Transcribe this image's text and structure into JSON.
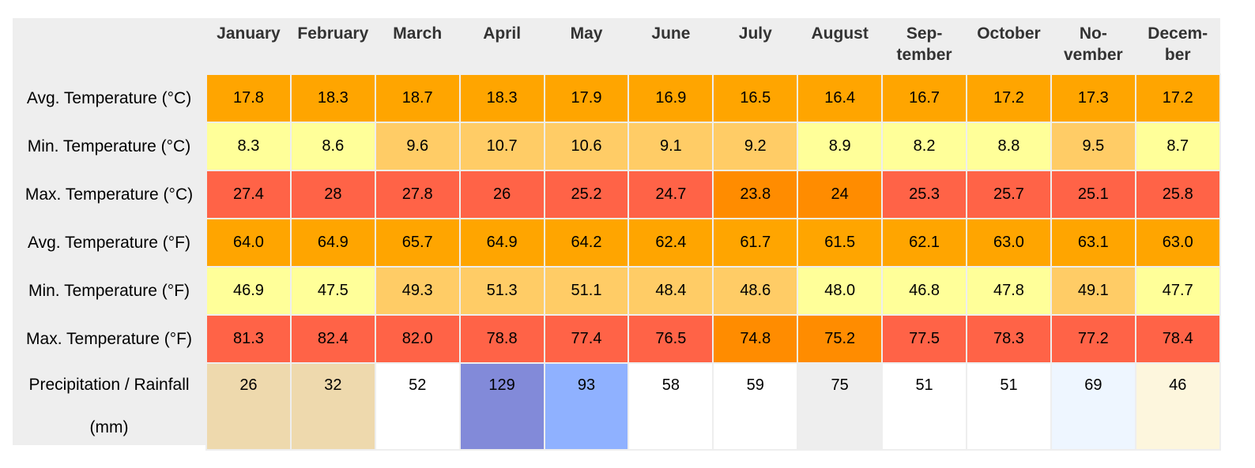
{
  "months": [
    "January",
    "February",
    "March",
    "April",
    "May",
    "June",
    "July",
    "August",
    "Sep-\ntember",
    "October",
    "No-\nvember",
    "Decem-\nber"
  ],
  "colors": {
    "orange": "#ffa500",
    "dark_orange": "#ff8c00",
    "light_orange": "#ffcc66",
    "pale_yellow": "#ffff99",
    "red": "#ff6347",
    "tan": "#eed9ad",
    "periwinkle": "#828ad9",
    "light_blue": "#8fb1ff",
    "light_gray": "#eeeeee",
    "ice_blue": "#eef6ff",
    "cream": "#fdf6dd",
    "white": "#ffffff"
  },
  "rows": [
    {
      "label": "Avg. Temperature (°C)",
      "values": [
        "17.8",
        "18.3",
        "18.7",
        "18.3",
        "17.9",
        "16.9",
        "16.5",
        "16.4",
        "16.7",
        "17.2",
        "17.3",
        "17.2"
      ],
      "colors": [
        "#ffa500",
        "#ffa500",
        "#ffa500",
        "#ffa500",
        "#ffa500",
        "#ffa500",
        "#ffa500",
        "#ffa500",
        "#ffa500",
        "#ffa500",
        "#ffa500",
        "#ffa500"
      ]
    },
    {
      "label": "Min. Temperature (°C)",
      "values": [
        "8.3",
        "8.6",
        "9.6",
        "10.7",
        "10.6",
        "9.1",
        "9.2",
        "8.9",
        "8.2",
        "8.8",
        "9.5",
        "8.7"
      ],
      "colors": [
        "#ffff99",
        "#ffff99",
        "#ffcc66",
        "#ffcc66",
        "#ffcc66",
        "#ffcc66",
        "#ffcc66",
        "#ffff99",
        "#ffff99",
        "#ffff99",
        "#ffcc66",
        "#ffff99"
      ]
    },
    {
      "label": "Max. Temperature (°C)",
      "values": [
        "27.4",
        "28",
        "27.8",
        "26",
        "25.2",
        "24.7",
        "23.8",
        "24",
        "25.3",
        "25.7",
        "25.1",
        "25.8"
      ],
      "colors": [
        "#ff6347",
        "#ff6347",
        "#ff6347",
        "#ff6347",
        "#ff6347",
        "#ff6347",
        "#ff8c00",
        "#ff8c00",
        "#ff6347",
        "#ff6347",
        "#ff6347",
        "#ff6347"
      ]
    },
    {
      "label": "Avg. Temperature (°F)",
      "values": [
        "64.0",
        "64.9",
        "65.7",
        "64.9",
        "64.2",
        "62.4",
        "61.7",
        "61.5",
        "62.1",
        "63.0",
        "63.1",
        "63.0"
      ],
      "colors": [
        "#ffa500",
        "#ffa500",
        "#ffa500",
        "#ffa500",
        "#ffa500",
        "#ffa500",
        "#ffa500",
        "#ffa500",
        "#ffa500",
        "#ffa500",
        "#ffa500",
        "#ffa500"
      ]
    },
    {
      "label": "Min. Temperature (°F)",
      "values": [
        "46.9",
        "47.5",
        "49.3",
        "51.3",
        "51.1",
        "48.4",
        "48.6",
        "48.0",
        "46.8",
        "47.8",
        "49.1",
        "47.7"
      ],
      "colors": [
        "#ffff99",
        "#ffff99",
        "#ffcc66",
        "#ffcc66",
        "#ffcc66",
        "#ffcc66",
        "#ffcc66",
        "#ffff99",
        "#ffff99",
        "#ffff99",
        "#ffcc66",
        "#ffff99"
      ]
    },
    {
      "label": "Max. Temperature (°F)",
      "values": [
        "81.3",
        "82.4",
        "82.0",
        "78.8",
        "77.4",
        "76.5",
        "74.8",
        "75.2",
        "77.5",
        "78.3",
        "77.2",
        "78.4"
      ],
      "colors": [
        "#ff6347",
        "#ff6347",
        "#ff6347",
        "#ff6347",
        "#ff6347",
        "#ff6347",
        "#ff8c00",
        "#ff8c00",
        "#ff6347",
        "#ff6347",
        "#ff6347",
        "#ff6347"
      ]
    }
  ],
  "precipitation": {
    "label": "Precipitation / Rainfall (mm)",
    "values": [
      "26",
      "32",
      "52",
      "129",
      "93",
      "58",
      "59",
      "75",
      "51",
      "51",
      "69",
      "46"
    ],
    "colors": [
      "#eed9ad",
      "#eed9ad",
      "#ffffff",
      "#828ad9",
      "#8fb1ff",
      "#ffffff",
      "#ffffff",
      "#eeeeee",
      "#ffffff",
      "#ffffff",
      "#eef6ff",
      "#fdf6dd"
    ]
  }
}
